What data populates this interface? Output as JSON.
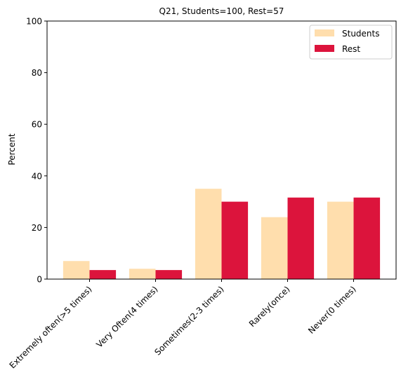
{
  "chart_data": {
    "type": "bar",
    "title": "Q21, Students=100, Rest=57",
    "xlabel": "",
    "ylabel": "Percent",
    "ylim": [
      0,
      100
    ],
    "yticks": [
      0,
      20,
      40,
      60,
      80,
      100
    ],
    "categories": [
      "Extremely often(>5 times)",
      "Very Often(4 times)",
      "Sometimes(2-3 times)",
      "Rarely(once)",
      "Never(0 times)"
    ],
    "series": [
      {
        "name": "Students",
        "color": "#ffdead",
        "values": [
          7.0,
          4.0,
          35.0,
          24.0,
          30.0
        ]
      },
      {
        "name": "Rest",
        "color": "#dc143c",
        "values": [
          3.5,
          3.5,
          30.0,
          31.6,
          31.6
        ]
      }
    ],
    "grid": false,
    "legend_position": "top-right"
  }
}
